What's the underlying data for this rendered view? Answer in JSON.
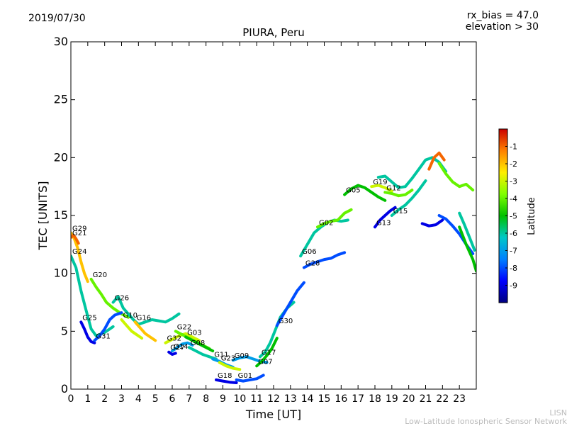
{
  "header": {
    "date": "2019/07/30",
    "rx_bias": "rx_bias = 47.0",
    "elevation": "elevation > 30"
  },
  "footer": {
    "org_short": "LISN",
    "org_long": "Low-Latitude Ionospheric Sensor Network"
  },
  "chart_data": {
    "type": "scatter",
    "title": "PIURA, Peru",
    "xlabel": "Time [UT]",
    "ylabel": "TEC [UNITS]",
    "xlim": [
      0,
      24
    ],
    "ylim": [
      0,
      30
    ],
    "xticks": [
      "0",
      "1",
      "2",
      "3",
      "4",
      "5",
      "6",
      "7",
      "8",
      "9",
      "10",
      "11",
      "12",
      "13",
      "14",
      "15",
      "16",
      "17",
      "18",
      "19",
      "20",
      "21",
      "22",
      "23"
    ],
    "yticks": [
      "0",
      "5",
      "10",
      "15",
      "20",
      "25",
      "30"
    ],
    "grid": false,
    "colorbar": {
      "label": "Latitude",
      "ticks": [
        "-1",
        "-2",
        "-3",
        "-4",
        "-5",
        "-6",
        "-7",
        "-8",
        "-9"
      ],
      "range": [
        -10,
        0
      ]
    },
    "series": [
      {
        "name": "G29",
        "color_lat": -2,
        "x": [
          0.0,
          0.2,
          0.4,
          0.6,
          0.8,
          1.0
        ],
        "y": [
          13.5,
          13.0,
          12.2,
          11.0,
          10.0,
          9.3
        ]
      },
      {
        "name": "G21",
        "color_lat": -1,
        "x": [
          0.0,
          0.15,
          0.3,
          0.45
        ],
        "y": [
          13.1,
          13.3,
          13.0,
          12.6
        ]
      },
      {
        "name": "G24",
        "color_lat": -6,
        "x": [
          0.0,
          0.3,
          0.6,
          0.9,
          1.2,
          1.5,
          2.0,
          2.5
        ],
        "y": [
          11.5,
          10.5,
          8.5,
          6.8,
          5.2,
          4.6,
          4.9,
          5.4
        ]
      },
      {
        "name": "G20",
        "color_lat": -4,
        "x": [
          1.2,
          1.5,
          1.8,
          2.1,
          2.5,
          3.0,
          3.4
        ],
        "y": [
          9.5,
          8.8,
          8.2,
          7.5,
          7.0,
          6.5,
          6.2
        ]
      },
      {
        "name": "G25",
        "color_lat": -9,
        "x": [
          0.6,
          0.8,
          1.0,
          1.2,
          1.4
        ],
        "y": [
          5.8,
          5.2,
          4.5,
          4.1,
          4.0
        ]
      },
      {
        "name": "G31",
        "color_lat": -8,
        "x": [
          1.4,
          1.7,
          2.0,
          2.3,
          2.6,
          3.0
        ],
        "y": [
          4.2,
          4.6,
          5.2,
          6.0,
          6.4,
          6.6
        ]
      },
      {
        "name": "G26",
        "color_lat": -6,
        "x": [
          2.5,
          2.8,
          3.1,
          3.4,
          3.7,
          4.0,
          4.4,
          4.8,
          5.2,
          5.6,
          6.0,
          6.4
        ],
        "y": [
          7.5,
          8.0,
          7.0,
          6.5,
          6.0,
          5.6,
          5.8,
          6.0,
          5.9,
          5.8,
          6.1,
          6.5
        ]
      },
      {
        "name": "G10",
        "color_lat": -3,
        "x": [
          3.0,
          3.3,
          3.6,
          3.9,
          4.2
        ],
        "y": [
          6.0,
          5.5,
          5.0,
          4.7,
          4.4
        ]
      },
      {
        "name": "G16",
        "color_lat": -2,
        "x": [
          3.8,
          4.1,
          4.4,
          4.7,
          5.0
        ],
        "y": [
          5.8,
          5.3,
          4.8,
          4.5,
          4.2
        ]
      },
      {
        "name": "G14",
        "color_lat": -7,
        "x": [
          6.0,
          6.3,
          6.6,
          6.9,
          7.2
        ],
        "y": [
          3.3,
          3.6,
          3.9,
          4.0,
          3.8
        ]
      },
      {
        "name": "G32",
        "color_lat": -3,
        "x": [
          5.6,
          6.0,
          6.4,
          6.8,
          7.2,
          7.6
        ],
        "y": [
          4.0,
          4.3,
          4.6,
          4.8,
          4.5,
          4.2
        ]
      },
      {
        "name": "G22",
        "color_lat": -4,
        "x": [
          6.2,
          6.6,
          7.0,
          7.4,
          7.8,
          8.2
        ],
        "y": [
          5.0,
          4.7,
          4.4,
          4.1,
          3.8,
          3.5
        ]
      },
      {
        "name": "G03",
        "color_lat": -5,
        "x": [
          6.8,
          7.2,
          7.6,
          8.0,
          8.4
        ],
        "y": [
          4.5,
          4.2,
          3.9,
          3.6,
          3.3
        ]
      },
      {
        "name": "G27",
        "color_lat": -9,
        "x": [
          5.8,
          6.0,
          6.2
        ],
        "y": [
          3.2,
          3.0,
          3.1
        ]
      },
      {
        "name": "G08",
        "color_lat": -6,
        "x": [
          7.0,
          7.4,
          7.8,
          8.2,
          8.6
        ],
        "y": [
          3.6,
          3.3,
          3.0,
          2.8,
          2.6
        ]
      },
      {
        "name": "G11",
        "color_lat": -7,
        "x": [
          8.4,
          8.8,
          9.2,
          9.6
        ],
        "y": [
          2.6,
          2.4,
          2.1,
          1.9
        ]
      },
      {
        "name": "G23",
        "color_lat": -3,
        "x": [
          8.8,
          9.2,
          9.6,
          10.0
        ],
        "y": [
          2.3,
          2.0,
          1.8,
          1.7
        ]
      },
      {
        "name": "G09",
        "color_lat": -7,
        "x": [
          9.6,
          10.0,
          10.4,
          10.8,
          11.2,
          11.6
        ],
        "y": [
          2.5,
          2.7,
          2.8,
          2.6,
          2.4,
          2.3
        ]
      },
      {
        "name": "G18",
        "color_lat": -9,
        "x": [
          8.6,
          9.0,
          9.4,
          9.8
        ],
        "y": [
          0.8,
          0.7,
          0.6,
          0.55
        ]
      },
      {
        "name": "G01",
        "color_lat": -8,
        "x": [
          9.8,
          10.2,
          10.6,
          11.0,
          11.4
        ],
        "y": [
          0.8,
          0.7,
          0.8,
          0.9,
          1.2
        ]
      },
      {
        "name": "G07",
        "color_lat": -5,
        "x": [
          11.0,
          11.3,
          11.6,
          11.9,
          12.2
        ],
        "y": [
          2.0,
          2.4,
          2.9,
          3.5,
          4.4
        ]
      },
      {
        "name": "G17",
        "color_lat": -6,
        "x": [
          11.2,
          11.5,
          11.8,
          12.1,
          12.4,
          12.8,
          13.2
        ],
        "y": [
          2.8,
          3.2,
          4.0,
          5.1,
          6.2,
          7.0,
          7.5
        ]
      },
      {
        "name": "G30",
        "color_lat": -8,
        "x": [
          12.2,
          12.6,
          13.0,
          13.4,
          13.8
        ],
        "y": [
          5.5,
          6.5,
          7.5,
          8.5,
          9.2
        ]
      },
      {
        "name": "G06",
        "color_lat": -6,
        "x": [
          13.6,
          14.0,
          14.4,
          14.8,
          15.2,
          15.6,
          16.0,
          16.4
        ],
        "y": [
          11.5,
          12.5,
          13.5,
          14.0,
          14.4,
          14.6,
          14.5,
          14.6
        ]
      },
      {
        "name": "G28",
        "color_lat": -8,
        "x": [
          13.8,
          14.2,
          14.6,
          15.0,
          15.4,
          15.8,
          16.2
        ],
        "y": [
          10.5,
          10.8,
          11.0,
          11.2,
          11.3,
          11.6,
          11.8
        ]
      },
      {
        "name": "G02",
        "color_lat": -4,
        "x": [
          14.6,
          15.0,
          15.4,
          15.8,
          16.2,
          16.6
        ],
        "y": [
          14.0,
          14.3,
          14.5,
          14.6,
          15.2,
          15.5
        ]
      },
      {
        "name": "G05",
        "color_lat": -5,
        "x": [
          16.2,
          16.6,
          17.0,
          17.4,
          17.8,
          18.2,
          18.6
        ],
        "y": [
          16.8,
          17.3,
          17.6,
          17.4,
          17.0,
          16.6,
          16.3
        ]
      },
      {
        "name": "G19",
        "color_lat": -3,
        "x": [
          17.8,
          18.2,
          18.6,
          19.0
        ],
        "y": [
          17.5,
          17.6,
          17.4,
          17.1
        ]
      },
      {
        "name": "G12",
        "color_lat": -4,
        "x": [
          18.6,
          19.0,
          19.4,
          19.8,
          20.2
        ],
        "y": [
          17.0,
          16.9,
          16.7,
          16.8,
          17.2
        ]
      },
      {
        "name": "G13",
        "color_lat": -9,
        "x": [
          18.0,
          18.3,
          18.6,
          18.9,
          19.2
        ],
        "y": [
          14.0,
          14.6,
          15.0,
          15.4,
          15.7
        ]
      },
      {
        "name": "G15",
        "color_lat": -6,
        "x": [
          19.0,
          19.4,
          19.8,
          20.2,
          20.6,
          21.0
        ],
        "y": [
          15.0,
          15.5,
          15.9,
          16.5,
          17.2,
          18.0
        ]
      },
      {
        "name": "",
        "color_lat": -6,
        "x": [
          18.2,
          18.6,
          19.0,
          19.4,
          19.8,
          20.2,
          20.6,
          21.0,
          21.4,
          21.8,
          22.2
        ],
        "y": [
          18.3,
          18.4,
          17.9,
          17.4,
          17.5,
          18.2,
          19.0,
          19.8,
          20.0,
          19.6,
          18.8
        ]
      },
      {
        "name": "",
        "color_lat": -1,
        "x": [
          21.2,
          21.5,
          21.8,
          22.1
        ],
        "y": [
          19.0,
          20.0,
          20.4,
          19.8
        ]
      },
      {
        "name": "",
        "color_lat": -4,
        "x": [
          21.8,
          22.2,
          22.6,
          23.0,
          23.4,
          23.8
        ],
        "y": [
          19.5,
          18.6,
          17.9,
          17.5,
          17.7,
          17.2
        ]
      },
      {
        "name": "",
        "color_lat": -9,
        "x": [
          20.8,
          21.2,
          21.6,
          22.0
        ],
        "y": [
          14.3,
          14.1,
          14.2,
          14.6
        ]
      },
      {
        "name": "",
        "color_lat": -8,
        "x": [
          21.8,
          22.2,
          22.6,
          23.0,
          23.4,
          23.8
        ],
        "y": [
          15.0,
          14.7,
          14.1,
          13.4,
          12.5,
          11.7
        ]
      },
      {
        "name": "",
        "color_lat": -6,
        "x": [
          23.0,
          23.3,
          23.6,
          23.9
        ],
        "y": [
          15.2,
          14.2,
          13.1,
          12.0
        ]
      },
      {
        "name": "",
        "color_lat": -5,
        "x": [
          23.0,
          23.4,
          23.8,
          24.0
        ],
        "y": [
          14.0,
          12.5,
          11.2,
          10.2
        ]
      }
    ]
  }
}
